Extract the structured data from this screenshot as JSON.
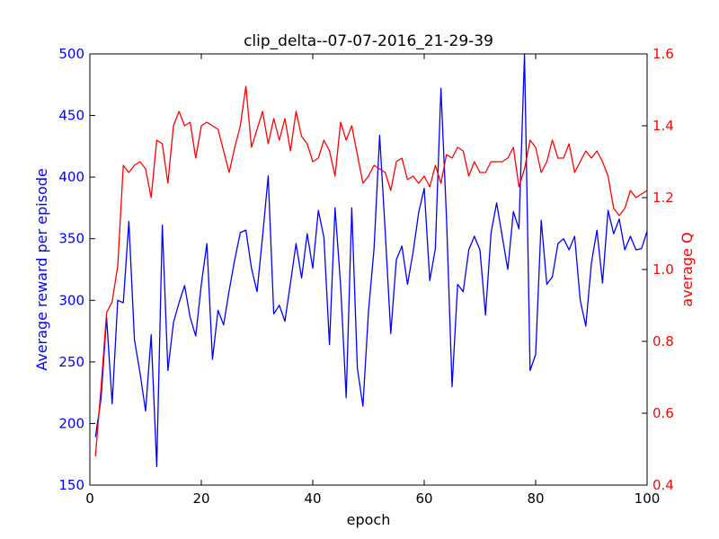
{
  "chart_data": {
    "type": "line",
    "title": "clip_delta--07-07-2016_21-29-39",
    "xlabel": "epoch",
    "xlim": [
      0,
      100
    ],
    "x_ticks": [
      0,
      20,
      40,
      60,
      80,
      100
    ],
    "left_axis": {
      "label": "Average reward per episode",
      "color": "#0000ff",
      "ylim": [
        150,
        500
      ],
      "ticks": [
        150,
        200,
        250,
        300,
        350,
        400,
        450,
        500
      ]
    },
    "right_axis": {
      "label": "average Q",
      "color": "#ff0000",
      "ylim": [
        0.4,
        1.6
      ],
      "ticks": [
        "0.4",
        "0.6",
        "0.8",
        "1.0",
        "1.2",
        "1.4",
        "1.6"
      ]
    },
    "grid": false,
    "series": [
      {
        "axis": "left",
        "color": "#0000ff",
        "x": [
          1,
          2,
          3,
          4,
          5,
          6,
          7,
          8,
          9,
          10,
          11,
          12,
          13,
          14,
          15,
          16,
          17,
          18,
          19,
          20,
          21,
          22,
          23,
          24,
          25,
          26,
          27,
          28,
          29,
          30,
          31,
          32,
          33,
          34,
          35,
          36,
          37,
          38,
          39,
          40,
          41,
          42,
          43,
          44,
          45,
          46,
          47,
          48,
          49,
          50,
          51,
          52,
          53,
          54,
          55,
          56,
          57,
          58,
          59,
          60,
          61,
          62,
          63,
          64,
          65,
          66,
          67,
          68,
          69,
          70,
          71,
          72,
          73,
          74,
          75,
          76,
          77,
          78,
          79,
          80,
          81,
          82,
          83,
          84,
          85,
          86,
          87,
          88,
          89,
          90,
          91,
          92,
          93,
          94,
          95,
          96,
          97,
          98,
          99,
          100
        ],
        "values": [
          189,
          220,
          286,
          216,
          300,
          298,
          364,
          268,
          241,
          210,
          272,
          165,
          361,
          243,
          282,
          298,
          312,
          286,
          271,
          313,
          346,
          252,
          292,
          280,
          308,
          333,
          355,
          357,
          326,
          307,
          352,
          401,
          289,
          296,
          283,
          314,
          346,
          318,
          354,
          326,
          373,
          351,
          264,
          375,
          312,
          221,
          375,
          245,
          214,
          291,
          342,
          434,
          356,
          273,
          333,
          344,
          313,
          339,
          371,
          391,
          316,
          342,
          472,
          367,
          230,
          313,
          307,
          341,
          352,
          341,
          288,
          355,
          379,
          352,
          325,
          372,
          358,
          500,
          243,
          256,
          365,
          313,
          319,
          346,
          350,
          341,
          352,
          300,
          279,
          330,
          357,
          314,
          373,
          354,
          366,
          341,
          352,
          341,
          342,
          356
        ]
      },
      {
        "axis": "right",
        "color": "#ff0000",
        "x": [
          1,
          2,
          3,
          4,
          5,
          6,
          7,
          8,
          9,
          10,
          11,
          12,
          13,
          14,
          15,
          16,
          17,
          18,
          19,
          20,
          21,
          22,
          23,
          24,
          25,
          26,
          27,
          28,
          29,
          30,
          31,
          32,
          33,
          34,
          35,
          36,
          37,
          38,
          39,
          40,
          41,
          42,
          43,
          44,
          45,
          46,
          47,
          48,
          49,
          50,
          51,
          52,
          53,
          54,
          55,
          56,
          57,
          58,
          59,
          60,
          61,
          62,
          63,
          64,
          65,
          66,
          67,
          68,
          69,
          70,
          71,
          72,
          73,
          74,
          75,
          76,
          77,
          78,
          79,
          80,
          81,
          82,
          83,
          84,
          85,
          86,
          87,
          88,
          89,
          90,
          91,
          92,
          93,
          94,
          95,
          96,
          97,
          98,
          99,
          100
        ],
        "values": [
          0.48,
          0.67,
          0.88,
          0.91,
          1.01,
          1.29,
          1.27,
          1.29,
          1.3,
          1.28,
          1.2,
          1.36,
          1.35,
          1.24,
          1.4,
          1.44,
          1.4,
          1.41,
          1.31,
          1.4,
          1.41,
          1.4,
          1.39,
          1.33,
          1.27,
          1.34,
          1.4,
          1.51,
          1.34,
          1.39,
          1.44,
          1.35,
          1.42,
          1.36,
          1.42,
          1.33,
          1.44,
          1.37,
          1.35,
          1.3,
          1.31,
          1.36,
          1.33,
          1.26,
          1.41,
          1.36,
          1.4,
          1.32,
          1.24,
          1.26,
          1.29,
          1.28,
          1.27,
          1.22,
          1.3,
          1.31,
          1.25,
          1.26,
          1.24,
          1.26,
          1.23,
          1.29,
          1.24,
          1.32,
          1.31,
          1.34,
          1.33,
          1.26,
          1.3,
          1.27,
          1.27,
          1.3,
          1.3,
          1.3,
          1.31,
          1.34,
          1.23,
          1.28,
          1.36,
          1.34,
          1.27,
          1.3,
          1.36,
          1.31,
          1.31,
          1.35,
          1.27,
          1.3,
          1.33,
          1.31,
          1.33,
          1.3,
          1.26,
          1.17,
          1.15,
          1.17,
          1.22,
          1.2,
          1.21,
          1.22
        ]
      }
    ]
  }
}
